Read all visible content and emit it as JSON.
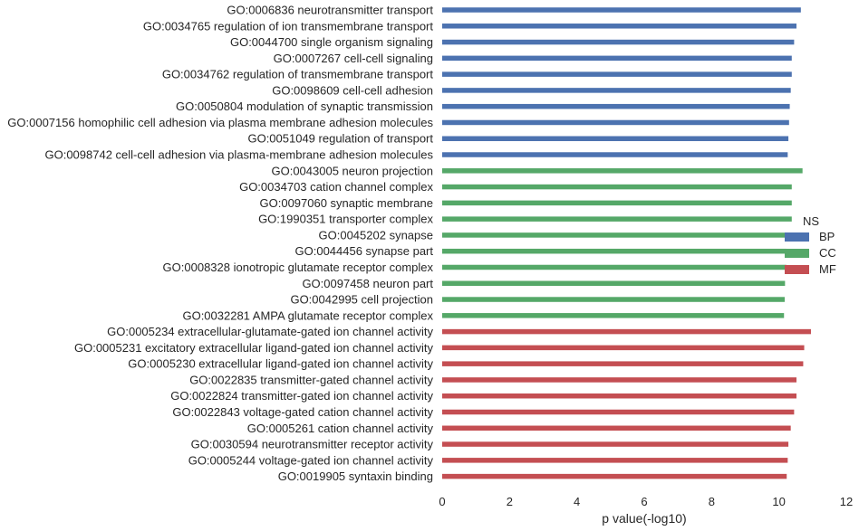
{
  "chart_data": {
    "type": "bar",
    "orientation": "horizontal",
    "xlabel": "p value(-log10)",
    "xlim": [
      0,
      12
    ],
    "xticks": [
      "0",
      "2",
      "4",
      "6",
      "8",
      "10",
      "12"
    ],
    "grid": false,
    "legend": {
      "title": "NS",
      "placement": "right",
      "entries": [
        {
          "name": "BP",
          "color": "#4c72b0"
        },
        {
          "name": "CC",
          "color": "#55a868"
        },
        {
          "name": "MF",
          "color": "#c44e52"
        }
      ]
    },
    "categories": [
      "GO:0006836 neurotransmitter transport",
      "GO:0034765 regulation of ion transmembrane transport",
      "GO:0044700 single organism signaling",
      "GO:0007267 cell-cell signaling",
      "GO:0034762 regulation of transmembrane transport",
      "GO:0098609 cell-cell adhesion",
      "GO:0050804 modulation of synaptic transmission",
      "GO:0007156 homophilic cell adhesion via plasma membrane adhesion molecules",
      "GO:0051049 regulation of transport",
      "GO:0098742 cell-cell adhesion via plasma-membrane adhesion molecules",
      "GO:0043005 neuron projection",
      "GO:0034703 cation channel complex",
      "GO:0097060 synaptic membrane",
      "GO:1990351 transporter complex",
      "GO:0045202 synapse",
      "GO:0044456 synapse part",
      "GO:0008328 ionotropic glutamate receptor complex",
      "GO:0097458 neuron part",
      "GO:0042995 cell projection",
      "GO:0032281 AMPA glutamate receptor complex",
      "GO:0005234 extracellular-glutamate-gated ion channel activity",
      "GO:0005231 excitatory extracellular ligand-gated ion channel activity",
      "GO:0005230 extracellular ligand-gated ion channel activity",
      "GO:0022835 transmitter-gated channel activity",
      "GO:0022824 transmitter-gated ion channel activity",
      "GO:0022843 voltage-gated cation channel activity",
      "GO:0005261 cation channel activity",
      "GO:0030594 neurotransmitter receptor activity",
      "GO:0005244 voltage-gated ion channel activity",
      "GO:0019905 syntaxin binding"
    ],
    "values": [
      10.65,
      10.52,
      10.45,
      10.38,
      10.38,
      10.35,
      10.32,
      10.3,
      10.28,
      10.26,
      10.7,
      10.38,
      10.38,
      10.38,
      10.25,
      10.22,
      10.22,
      10.18,
      10.17,
      10.15,
      10.95,
      10.75,
      10.72,
      10.52,
      10.52,
      10.45,
      10.35,
      10.28,
      10.26,
      10.23
    ],
    "groups": [
      "BP",
      "BP",
      "BP",
      "BP",
      "BP",
      "BP",
      "BP",
      "BP",
      "BP",
      "BP",
      "CC",
      "CC",
      "CC",
      "CC",
      "CC",
      "CC",
      "CC",
      "CC",
      "CC",
      "CC",
      "MF",
      "MF",
      "MF",
      "MF",
      "MF",
      "MF",
      "MF",
      "MF",
      "MF",
      "MF"
    ]
  }
}
